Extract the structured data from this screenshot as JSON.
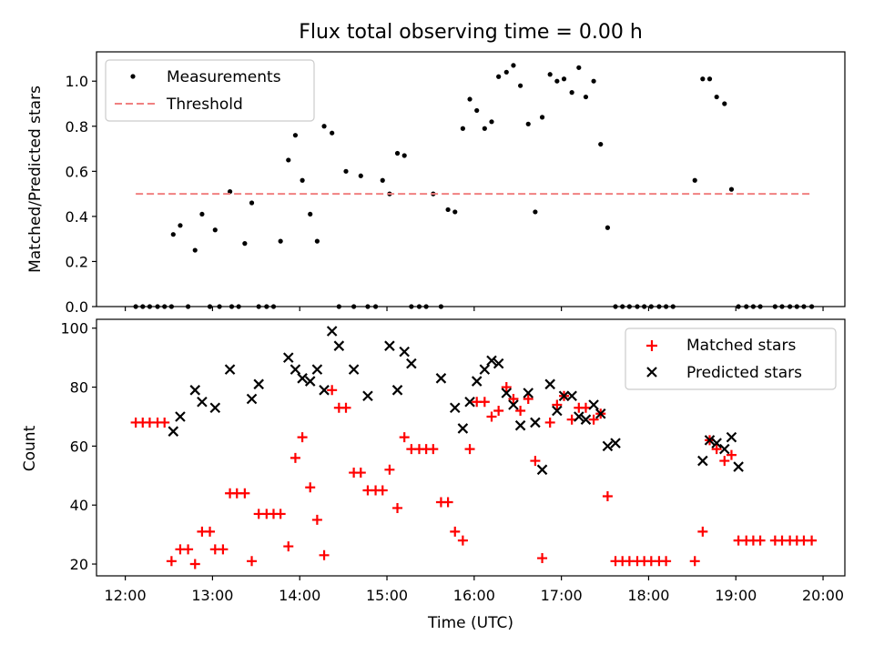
{
  "chart_data": [
    {
      "type": "scatter",
      "title": "Flux total observing time = 0.00 h",
      "xlabel": "",
      "ylabel": "Matched/Predicted stars",
      "ylim": [
        0,
        1.13
      ],
      "yticks": [
        0.0,
        0.2,
        0.4,
        0.6,
        0.8,
        1.0
      ],
      "ytick_labels": [
        "0.0",
        "0.2",
        "0.4",
        "0.6",
        "0.8",
        "1.0"
      ],
      "xlim": [
        11.67,
        20.25
      ],
      "grid": false,
      "legend_position": "upper-left",
      "series": [
        {
          "name": "Measurements",
          "marker": "dot",
          "color": "#000000",
          "x": [
            12.12,
            12.2,
            12.28,
            12.37,
            12.45,
            12.53,
            12.55,
            12.63,
            12.72,
            12.8,
            12.88,
            12.97,
            13.03,
            13.08,
            13.2,
            13.22,
            13.3,
            13.37,
            13.45,
            13.53,
            13.62,
            13.7,
            13.78,
            13.87,
            13.95,
            14.03,
            14.12,
            14.2,
            14.28,
            14.37,
            14.45,
            14.53,
            14.62,
            14.7,
            14.78,
            14.87,
            14.95,
            15.03,
            15.12,
            15.2,
            15.28,
            15.37,
            15.45,
            15.53,
            15.62,
            15.7,
            15.78,
            15.87,
            15.95,
            16.03,
            16.12,
            16.2,
            16.28,
            16.37,
            16.45,
            16.53,
            16.62,
            16.7,
            16.78,
            16.87,
            16.95,
            17.03,
            17.12,
            17.2,
            17.28,
            17.37,
            17.45,
            17.53,
            17.62,
            17.7,
            17.78,
            17.87,
            17.95,
            18.03,
            18.12,
            18.2,
            18.28,
            18.53,
            18.62,
            18.7,
            18.78,
            18.87,
            18.95,
            19.03,
            19.12,
            19.2,
            19.28,
            19.45,
            19.53,
            19.62,
            19.7,
            19.78,
            19.87
          ],
          "y": [
            0,
            0,
            0,
            0,
            0,
            0,
            0.32,
            0.36,
            0,
            0.25,
            0.41,
            0,
            0.34,
            0,
            0.51,
            0,
            0,
            0.28,
            0.46,
            0,
            0,
            0,
            0.29,
            0.65,
            0.76,
            0.56,
            0.41,
            0.29,
            0.8,
            0.77,
            0,
            0.6,
            0,
            0.58,
            0,
            0,
            0.56,
            0.5,
            0.68,
            0.67,
            0,
            0,
            0,
            0.5,
            0,
            0.43,
            0.42,
            0.79,
            0.92,
            0.87,
            0.79,
            0.82,
            1.02,
            1.04,
            1.07,
            0.98,
            0.81,
            0.42,
            0.84,
            1.03,
            1.0,
            1.01,
            0.95,
            1.06,
            0.93,
            1.0,
            0.72,
            0.35,
            0,
            0,
            0,
            0,
            0,
            0,
            0,
            0,
            0,
            0.56,
            1.01,
            1.01,
            0.93,
            0.9,
            0.52,
            0,
            0,
            0,
            0,
            0,
            0,
            0,
            0,
            0,
            0
          ]
        },
        {
          "name": "Threshold",
          "style": "dashed",
          "color": "#f08080",
          "x": [
            12.12,
            19.87
          ],
          "y": [
            0.5,
            0.5
          ]
        }
      ]
    },
    {
      "type": "scatter",
      "title": "",
      "xlabel": "Time (UTC)",
      "ylabel": "Count",
      "ylim": [
        16,
        103
      ],
      "yticks": [
        20,
        40,
        60,
        80,
        100
      ],
      "ytick_labels": [
        "20",
        "40",
        "60",
        "80",
        "100"
      ],
      "xlim": [
        11.67,
        20.25
      ],
      "xticks": [
        12,
        13,
        14,
        15,
        16,
        17,
        18,
        19,
        20
      ],
      "xtick_labels": [
        "12:00",
        "13:00",
        "14:00",
        "15:00",
        "16:00",
        "17:00",
        "18:00",
        "19:00",
        "20:00"
      ],
      "grid": false,
      "legend_position": "upper-right",
      "series": [
        {
          "name": "Matched stars",
          "marker": "plus",
          "color": "#ff0000",
          "x": [
            12.12,
            12.2,
            12.28,
            12.37,
            12.45,
            12.53,
            12.63,
            12.72,
            12.8,
            12.88,
            12.97,
            13.03,
            13.12,
            13.2,
            13.28,
            13.37,
            13.45,
            13.53,
            13.62,
            13.7,
            13.78,
            13.87,
            13.95,
            14.03,
            14.12,
            14.2,
            14.28,
            14.37,
            14.45,
            14.53,
            14.62,
            14.7,
            14.78,
            14.87,
            14.95,
            15.03,
            15.12,
            15.2,
            15.28,
            15.37,
            15.45,
            15.53,
            15.62,
            15.7,
            15.78,
            15.87,
            15.95,
            16.03,
            16.12,
            16.2,
            16.28,
            16.37,
            16.45,
            16.53,
            16.62,
            16.7,
            16.78,
            16.87,
            16.95,
            17.03,
            17.12,
            17.2,
            17.28,
            17.37,
            17.45,
            17.53,
            17.62,
            17.7,
            17.78,
            17.87,
            17.95,
            18.03,
            18.12,
            18.2,
            18.53,
            18.62,
            18.7,
            18.78,
            18.87,
            18.95,
            19.03,
            19.12,
            19.2,
            19.28,
            19.45,
            19.53,
            19.62,
            19.7,
            19.78,
            19.87
          ],
          "y": [
            68,
            68,
            68,
            68,
            68,
            21,
            25,
            25,
            20,
            31,
            31,
            25,
            25,
            44,
            44,
            44,
            21,
            37,
            37,
            37,
            37,
            26,
            56,
            63,
            46,
            35,
            23,
            79,
            73,
            73,
            51,
            51,
            45,
            45,
            45,
            52,
            39,
            63,
            59,
            59,
            59,
            59,
            41,
            41,
            31,
            28,
            59,
            75,
            75,
            70,
            72,
            80,
            76,
            72,
            76,
            55,
            22,
            68,
            74,
            77,
            69,
            73,
            73,
            69,
            71,
            43,
            21,
            21,
            21,
            21,
            21,
            21,
            21,
            21,
            21,
            31,
            62,
            59,
            55,
            57,
            28,
            28,
            28,
            28,
            28,
            28,
            28,
            28,
            28,
            28
          ]
        },
        {
          "name": "Predicted stars",
          "marker": "x",
          "color": "#000000",
          "x": [
            12.55,
            12.63,
            12.8,
            12.88,
            13.03,
            13.2,
            13.45,
            13.53,
            13.87,
            13.95,
            14.03,
            14.12,
            14.2,
            14.28,
            14.37,
            14.45,
            14.62,
            14.78,
            15.03,
            15.12,
            15.2,
            15.28,
            15.62,
            15.78,
            15.87,
            15.95,
            16.03,
            16.12,
            16.2,
            16.28,
            16.37,
            16.45,
            16.53,
            16.62,
            16.7,
            16.78,
            16.87,
            16.95,
            17.03,
            17.12,
            17.2,
            17.28,
            17.37,
            17.45,
            17.53,
            17.62,
            18.62,
            18.7,
            18.78,
            18.87,
            18.95,
            19.03
          ],
          "y": [
            65,
            70,
            79,
            75,
            73,
            86,
            76,
            81,
            90,
            86,
            83,
            82,
            86,
            79,
            99,
            94,
            86,
            77,
            94,
            79,
            92,
            88,
            83,
            73,
            66,
            75,
            82,
            86,
            89,
            88,
            78,
            74,
            67,
            78,
            68,
            52,
            81,
            72,
            77,
            77,
            70,
            69,
            74,
            71,
            60,
            61,
            55,
            62,
            61,
            59,
            63,
            53
          ]
        }
      ]
    }
  ]
}
